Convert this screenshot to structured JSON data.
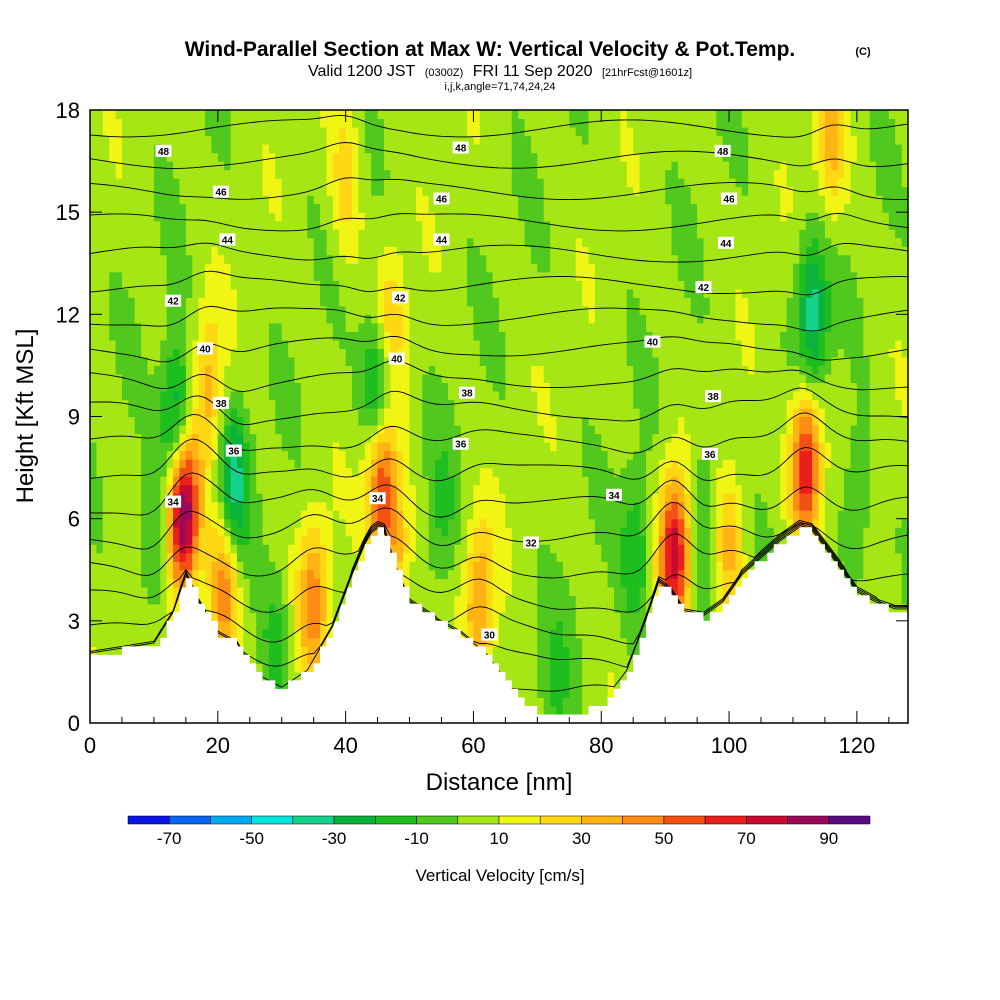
{
  "chart_data": {
    "type": "heatmap",
    "title": "Wind-Parallel Section at Max W: Vertical Velocity & Pot.Temp.",
    "title_mark": "(C)",
    "subtitle_parts": [
      "Valid 1200 JST",
      "(0300Z)",
      "FRI 11 Sep 2020",
      "[21hrFcst@1601z]"
    ],
    "subtitle2": "i,j,k,angle=71,74,24,24",
    "xlabel": "Distance [nm]",
    "ylabel": "Height [Kft MSL]",
    "xlim": [
      0,
      128
    ],
    "ylim": [
      0,
      18
    ],
    "x_ticks": [
      0,
      20,
      40,
      60,
      80,
      100,
      120
    ],
    "y_ticks": [
      0,
      3,
      6,
      9,
      12,
      15,
      18
    ],
    "colorbar": {
      "title": "Vertical Velocity [cm/s]",
      "bounds": [
        -80,
        -70,
        -60,
        -50,
        -40,
        -30,
        -20,
        -10,
        0,
        10,
        20,
        30,
        40,
        50,
        60,
        70,
        80,
        90,
        100
      ],
      "labels": [
        "-70",
        "-50",
        "-30",
        "-10",
        "10",
        "30",
        "50",
        "70",
        "90"
      ],
      "label_values": [
        -70,
        -50,
        -30,
        -10,
        10,
        30,
        50,
        70,
        90
      ],
      "colors": [
        "#0a14e6",
        "#0a64f0",
        "#00aaf0",
        "#00e6dc",
        "#14d28c",
        "#0ab43c",
        "#1ebe1e",
        "#50c81e",
        "#a5e614",
        "#f0f514",
        "#ffd714",
        "#ffb414",
        "#ff8c14",
        "#f55014",
        "#eb1e1e",
        "#c80a32",
        "#9b0a5a",
        "#5a0a82"
      ]
    },
    "terrain_profile": {
      "x": [
        0,
        10,
        13,
        15,
        17,
        20,
        23,
        26,
        30,
        34,
        38,
        41,
        43,
        44.5,
        46,
        47.5,
        50,
        54,
        58,
        62,
        65,
        69,
        72,
        76,
        80,
        84,
        87,
        89,
        91,
        93,
        96,
        99,
        102,
        105,
        108,
        111,
        113,
        115,
        117,
        120,
        123,
        126,
        128
      ],
      "y": [
        2.0,
        2.3,
        3.2,
        4.3,
        3.5,
        2.6,
        2.3,
        1.4,
        1.0,
        1.5,
        2.8,
        4.3,
        5.2,
        5.7,
        5.6,
        4.6,
        3.5,
        3.0,
        2.6,
        2.0,
        1.2,
        0.4,
        0.3,
        0.3,
        0.5,
        1.5,
        3.0,
        4.1,
        3.8,
        3.2,
        3.1,
        3.5,
        4.3,
        4.8,
        5.3,
        5.7,
        5.6,
        5.1,
        4.6,
        3.8,
        3.5,
        3.3,
        3.3
      ]
    },
    "w_features": [
      {
        "x": 14.5,
        "z": 6.2,
        "value": 95
      },
      {
        "x": 91.5,
        "z": 5.0,
        "value": 72
      },
      {
        "x": 112,
        "z": 7.6,
        "value": 70
      },
      {
        "x": 45.5,
        "z": 7.2,
        "value": 62
      },
      {
        "x": 21,
        "z": 4.0,
        "value": 45
      },
      {
        "x": 35,
        "z": 3.6,
        "value": 40
      },
      {
        "x": 61,
        "z": 3.6,
        "value": 38
      },
      {
        "x": 48,
        "z": 4.8,
        "value": 30
      },
      {
        "x": 116,
        "z": 17.0,
        "value": 28
      },
      {
        "x": 18.5,
        "z": 9.8,
        "value": 30
      },
      {
        "x": 47,
        "z": 11.8,
        "value": 26
      },
      {
        "x": 40,
        "z": 16.0,
        "value": 22
      },
      {
        "x": 100,
        "z": 5.2,
        "value": 28
      },
      {
        "x": 13.5,
        "z": 8.8,
        "value": -45
      },
      {
        "x": 45,
        "z": 9.7,
        "value": -45
      },
      {
        "x": 22.5,
        "z": 7.0,
        "value": -40
      },
      {
        "x": 113,
        "z": 12.0,
        "value": -42
      },
      {
        "x": 85.5,
        "z": 5.0,
        "value": -25
      },
      {
        "x": 29,
        "z": 2.2,
        "value": -18
      },
      {
        "x": 73,
        "z": 1.0,
        "value": -15
      },
      {
        "x": 10,
        "z": 5.2,
        "value": -20
      },
      {
        "x": 96,
        "z": 6.2,
        "value": -20
      },
      {
        "x": 55,
        "z": 6.0,
        "value": -15
      },
      {
        "x": 120,
        "z": 6.5,
        "value": -18
      }
    ],
    "theta_levels": [
      30,
      31,
      32,
      33,
      34,
      35,
      36,
      37,
      38,
      39,
      40,
      41,
      42,
      43,
      44,
      45,
      46,
      47,
      48
    ],
    "contour_labels": [
      {
        "text": "48",
        "x": 11.5,
        "z": 16.8
      },
      {
        "text": "48",
        "x": 58,
        "z": 16.9
      },
      {
        "text": "48",
        "x": 99,
        "z": 16.8
      },
      {
        "text": "46",
        "x": 20.5,
        "z": 15.6
      },
      {
        "text": "46",
        "x": 55,
        "z": 15.4
      },
      {
        "text": "46",
        "x": 100,
        "z": 15.4
      },
      {
        "text": "44",
        "x": 21.5,
        "z": 14.2
      },
      {
        "text": "44",
        "x": 55,
        "z": 14.2
      },
      {
        "text": "44",
        "x": 99.5,
        "z": 14.1
      },
      {
        "text": "42",
        "x": 13,
        "z": 12.4
      },
      {
        "text": "42",
        "x": 48.5,
        "z": 12.5
      },
      {
        "text": "42",
        "x": 96,
        "z": 12.8
      },
      {
        "text": "40",
        "x": 18,
        "z": 11.0
      },
      {
        "text": "40",
        "x": 48,
        "z": 10.7
      },
      {
        "text": "40",
        "x": 88,
        "z": 11.2
      },
      {
        "text": "38",
        "x": 20.5,
        "z": 9.4
      },
      {
        "text": "38",
        "x": 59,
        "z": 9.7
      },
      {
        "text": "38",
        "x": 97.5,
        "z": 9.6
      },
      {
        "text": "36",
        "x": 22.5,
        "z": 8.0
      },
      {
        "text": "36",
        "x": 58,
        "z": 8.2
      },
      {
        "text": "36",
        "x": 97,
        "z": 7.9
      },
      {
        "text": "34",
        "x": 13,
        "z": 6.5
      },
      {
        "text": "34",
        "x": 45,
        "z": 6.6
      },
      {
        "text": "34",
        "x": 82,
        "z": 6.7
      },
      {
        "text": "32",
        "x": 69,
        "z": 5.3
      },
      {
        "text": "30",
        "x": 62.5,
        "z": 2.6
      }
    ],
    "grid": false
  }
}
